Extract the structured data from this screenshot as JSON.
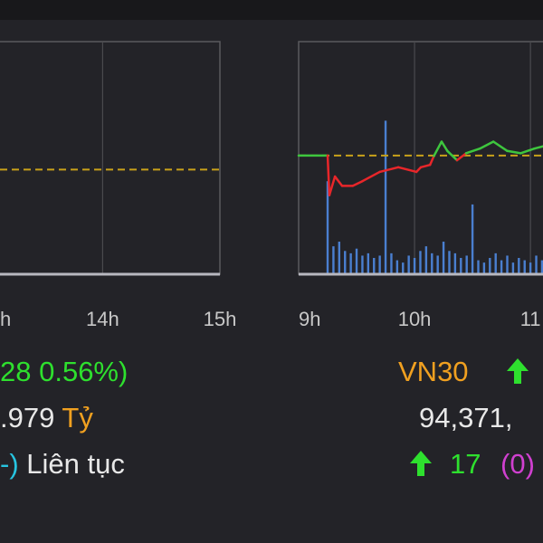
{
  "left_chart": {
    "xlim": [
      13.125,
      15
    ],
    "xticks": [
      {
        "value": 13,
        "label": "h"
      },
      {
        "value": 14,
        "label": "14h"
      },
      {
        "value": 15,
        "label": "15h"
      }
    ],
    "ylim": [
      0,
      100
    ],
    "reference": 45
  },
  "right_chart": {
    "xlim": [
      0,
      126.5
    ],
    "xticks": [
      {
        "value": 0,
        "label": "9h"
      },
      {
        "value": 60,
        "label": "10h"
      },
      {
        "value": 120,
        "label": "11"
      }
    ],
    "ylim": [
      0,
      100
    ],
    "reference": 51,
    "line_x": [
      0,
      15,
      15.9,
      18.8,
      22.5,
      28,
      33,
      42,
      51.6,
      61,
      63.3,
      68,
      70,
      74,
      77,
      82,
      86.7,
      93.8,
      100.8,
      108,
      115,
      122,
      126.5
    ],
    "line": [
      51,
      51,
      34,
      42,
      38,
      38,
      40,
      44,
      46,
      44,
      46,
      47,
      50.8,
      57,
      53,
      49,
      52,
      54,
      57,
      53,
      52,
      54,
      55
    ],
    "up_color": "#3ec63e",
    "down_color": "#e8262a",
    "volume_x": [
      15,
      18,
      21,
      24,
      27,
      30,
      33,
      36,
      39,
      42,
      45,
      48,
      51,
      54,
      57,
      60,
      63,
      66,
      69,
      72,
      75,
      78,
      81,
      84,
      87,
      90,
      93,
      96,
      99,
      102,
      105,
      108,
      111,
      114,
      117,
      120,
      123,
      126
    ],
    "volume": [
      40,
      12,
      14,
      10,
      9,
      11,
      8,
      9,
      7,
      8,
      66,
      9,
      6,
      5,
      8,
      7,
      10,
      12,
      9,
      8,
      14,
      10,
      9,
      7,
      8,
      30,
      6,
      5,
      7,
      9,
      6,
      8,
      5,
      7,
      6,
      5,
      8,
      6
    ],
    "volume_color": "#4a7fd0"
  },
  "summary": {
    "change": "28 0.56%)",
    "value": ".979",
    "unit": "Tỷ",
    "status_prefix": "-)",
    "status": "Liên tục"
  },
  "vn30": {
    "name": "VN30",
    "value": "94,371,",
    "up": "17",
    "unchanged": "(0)"
  }
}
